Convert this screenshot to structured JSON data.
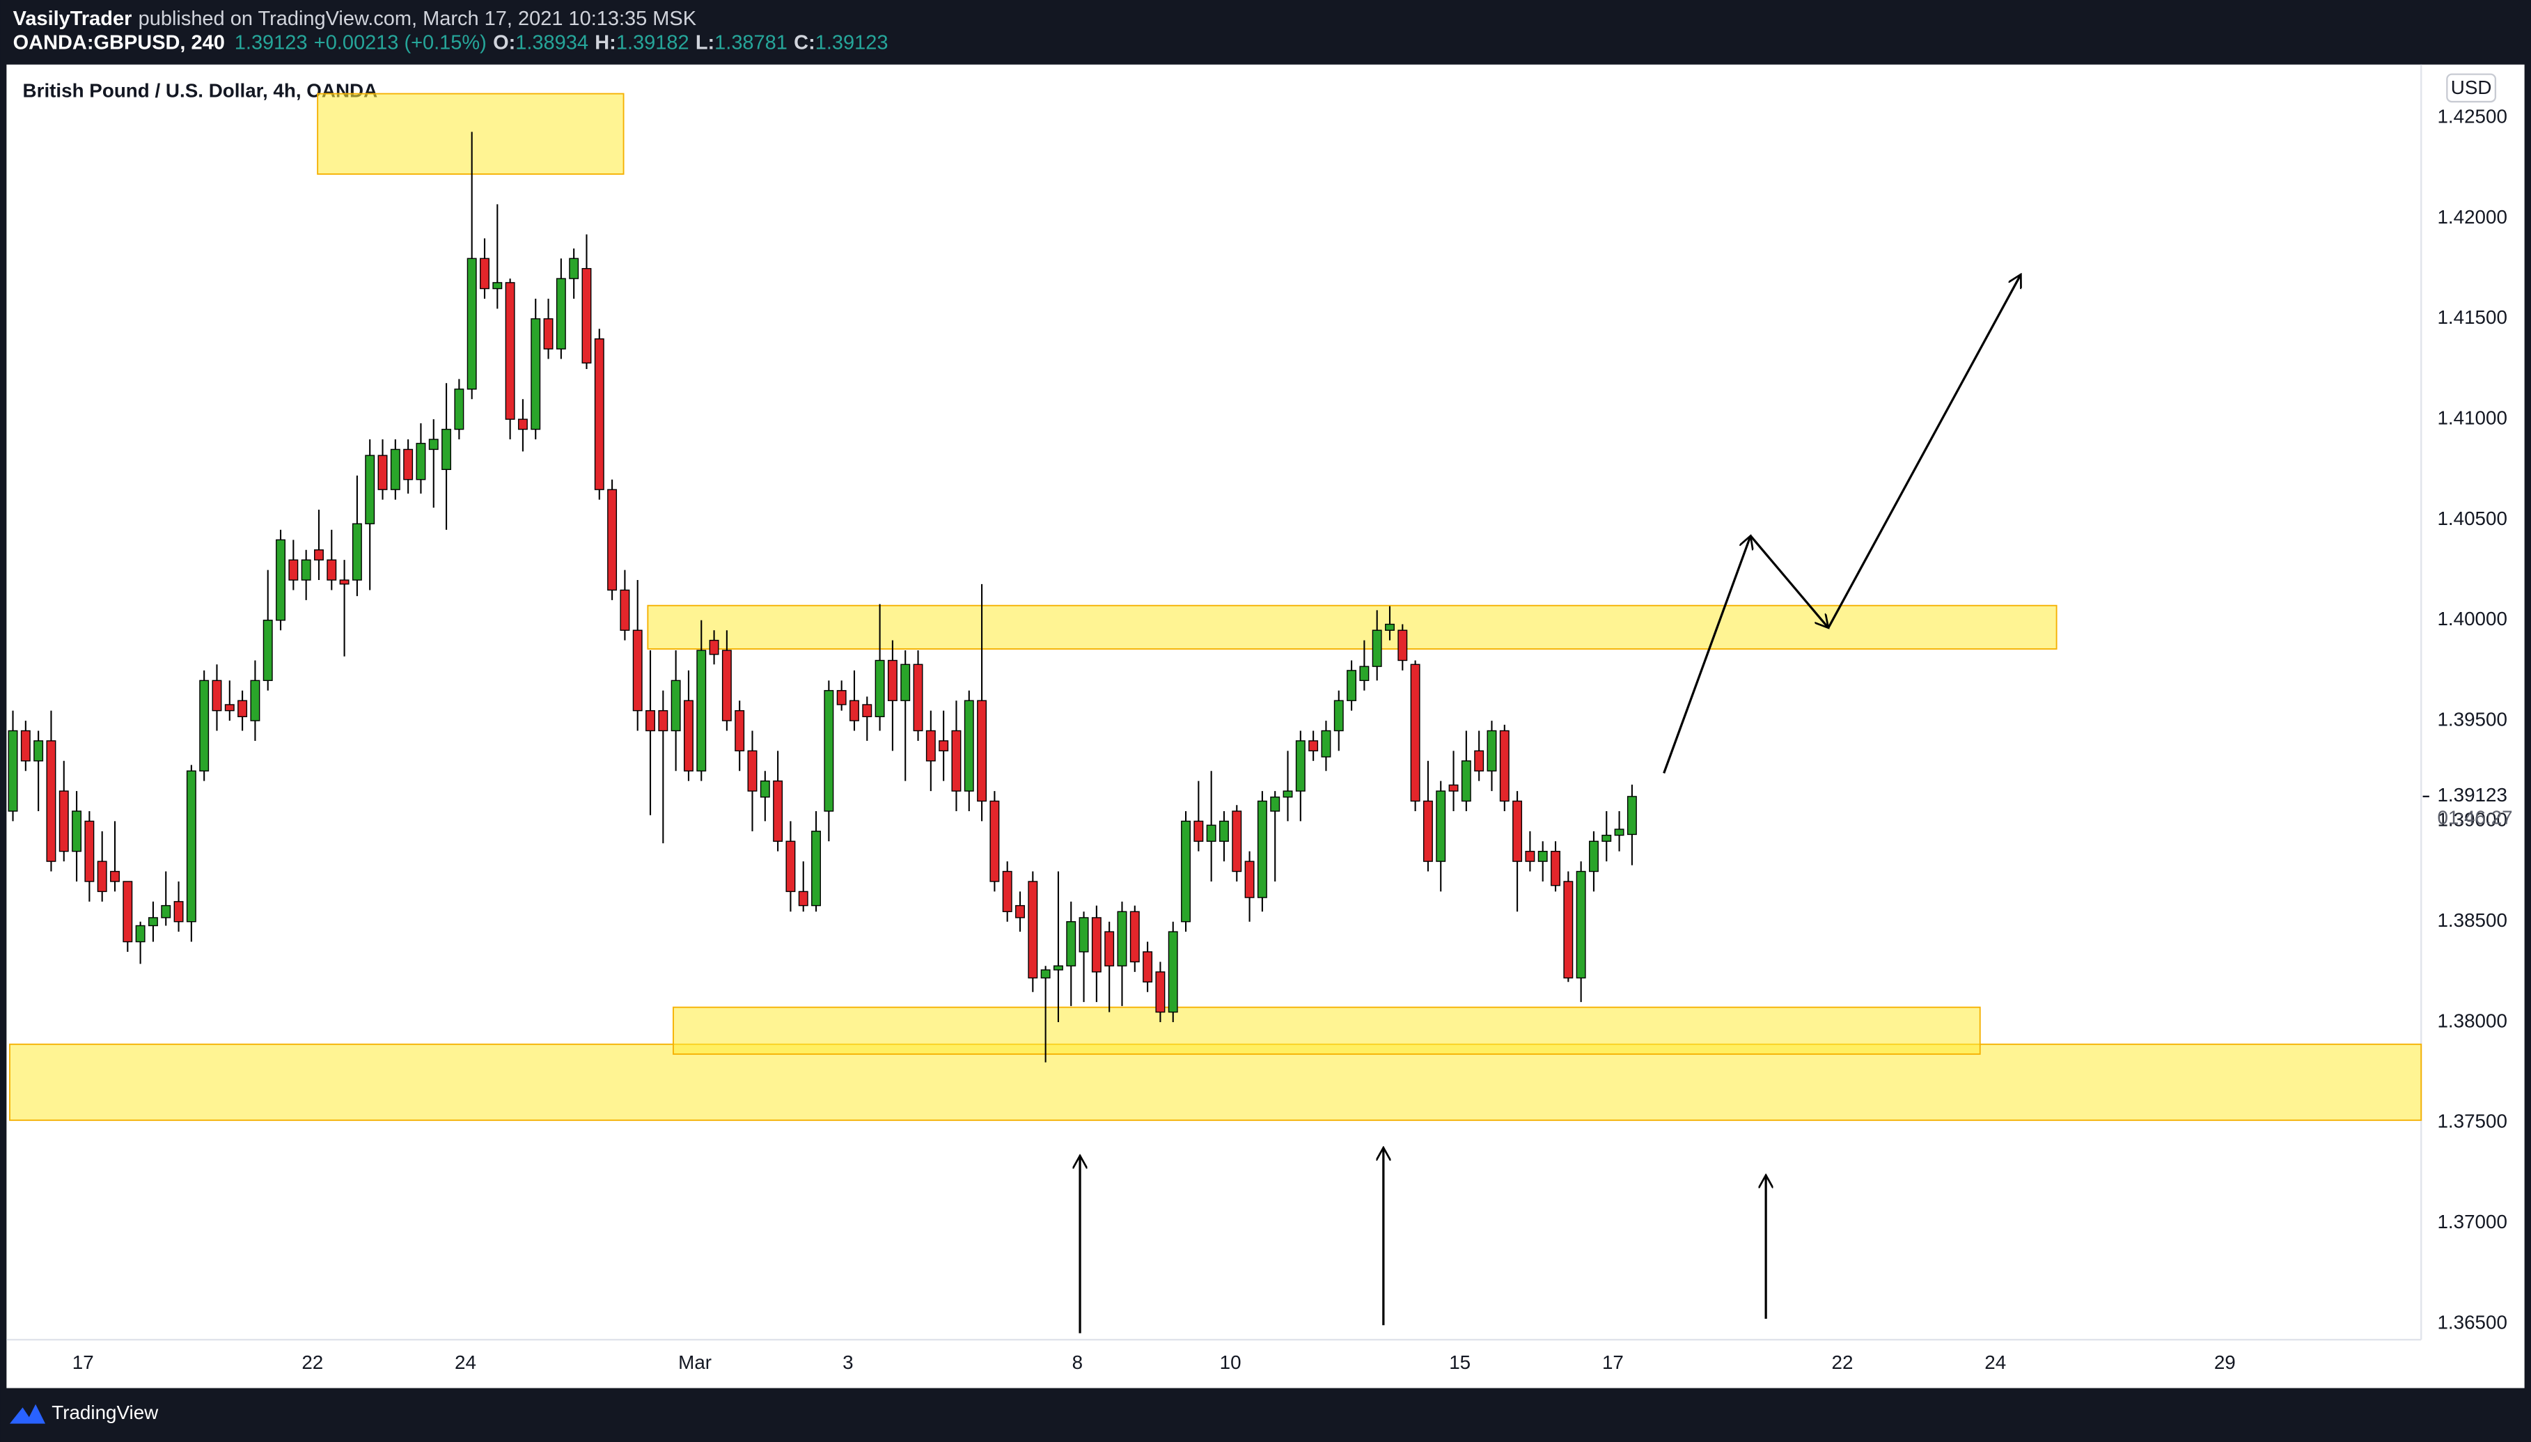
{
  "header": {
    "author": "VasilyTrader",
    "published": "published on TradingView.com, March 17, 2021 10:13:35 MSK",
    "symbol": "OANDA:GBPUSD, 240",
    "last": "1.39123",
    "change": "+0.00213 (+0.15%)",
    "ohlc": [
      {
        "key": "O:",
        "val": "1.38934"
      },
      {
        "key": "H:",
        "val": "1.39182"
      },
      {
        "key": "L:",
        "val": "1.38781"
      },
      {
        "key": "C:",
        "val": "1.39123"
      }
    ]
  },
  "footer": {
    "brand": "TradingView"
  },
  "chart_data": {
    "type": "candlestick",
    "title": "British Pound / U.S. Dollar, 4h, OANDA",
    "currency": "USD",
    "last_price_label": "1.39123",
    "countdown": "01:46:27",
    "up_color": "#2aa52a",
    "down_color": "#e3262b",
    "zone_color": "#ffeb3b",
    "xlim": [
      0,
      189.4
    ],
    "ylim": [
      1.3642,
      1.42765
    ],
    "xticks": [
      {
        "value": 6,
        "label": "17"
      },
      {
        "value": 24,
        "label": "22"
      },
      {
        "value": 36,
        "label": "24"
      },
      {
        "value": 54,
        "label": "Mar"
      },
      {
        "value": 66,
        "label": "3"
      },
      {
        "value": 84,
        "label": "8"
      },
      {
        "value": 96,
        "label": "10"
      },
      {
        "value": 114,
        "label": "15"
      },
      {
        "value": 126,
        "label": "17"
      },
      {
        "value": 144,
        "label": "22"
      },
      {
        "value": 156,
        "label": "24"
      },
      {
        "value": 174,
        "label": "29"
      }
    ],
    "yticks": [
      {
        "value": 1.365,
        "label": "1.36500"
      },
      {
        "value": 1.37,
        "label": "1.37000"
      },
      {
        "value": 1.375,
        "label": "1.37500"
      },
      {
        "value": 1.38,
        "label": "1.38000"
      },
      {
        "value": 1.385,
        "label": "1.38500"
      },
      {
        "value": 1.39,
        "label": "1.39000"
      },
      {
        "value": 1.395,
        "label": "1.39500"
      },
      {
        "value": 1.4,
        "label": "1.40000"
      },
      {
        "value": 1.405,
        "label": "1.40500"
      },
      {
        "value": 1.41,
        "label": "1.41000"
      },
      {
        "value": 1.415,
        "label": "1.41500"
      },
      {
        "value": 1.42,
        "label": "1.42000"
      },
      {
        "value": 1.425,
        "label": "1.42500"
      }
    ],
    "open": [
      1.3905,
      1.3945,
      1.393,
      1.394,
      1.3915,
      1.3885,
      1.39,
      1.388,
      1.3875,
      1.387,
      1.384,
      1.3848,
      1.3852,
      1.386,
      1.385,
      1.3925,
      1.397,
      1.3958,
      1.396,
      1.395,
      1.397,
      1.4,
      1.403,
      1.402,
      1.4035,
      1.403,
      1.402,
      1.402,
      1.4048,
      1.4082,
      1.4065,
      1.4085,
      1.407,
      1.4085,
      1.4075,
      1.4095,
      1.4115,
      1.418,
      1.4165,
      1.4168,
      1.41,
      1.4095,
      1.415,
      1.4135,
      1.417,
      1.4175,
      1.414,
      1.4065,
      1.4015,
      1.3995,
      1.3955,
      1.3955,
      1.3945,
      1.396,
      1.3925,
      1.399,
      1.3985,
      1.3955,
      1.3935,
      1.3912,
      1.392,
      1.389,
      1.3865,
      1.3858,
      1.3905,
      1.3965,
      1.396,
      1.3958,
      1.3952,
      1.398,
      1.396,
      1.3978,
      1.3945,
      1.394,
      1.3945,
      1.3915,
      1.396,
      1.391,
      1.3875,
      1.3858,
      1.387,
      1.3822,
      1.3826,
      1.3828,
      1.3835,
      1.3852,
      1.3845,
      1.3828,
      1.3855,
      1.3835,
      1.3825,
      1.3805,
      1.385,
      1.39,
      1.389,
      1.389,
      1.3905,
      1.388,
      1.3862,
      1.3905,
      1.3912,
      1.3915,
      1.394,
      1.3932,
      1.3945,
      1.396,
      1.397,
      1.3977,
      1.3995,
      1.3995,
      1.3978,
      1.391,
      1.388,
      1.3918,
      1.391,
      1.3935,
      1.3925,
      1.3945,
      1.391,
      1.3885,
      1.388,
      1.3885,
      1.387,
      1.3822,
      1.3875,
      1.389,
      1.3893,
      1.38934
    ],
    "high": [
      1.3955,
      1.395,
      1.3945,
      1.3955,
      1.393,
      1.3915,
      1.3905,
      1.3895,
      1.39,
      1.387,
      1.385,
      1.386,
      1.3875,
      1.387,
      1.3928,
      1.3975,
      1.3978,
      1.397,
      1.3965,
      1.398,
      1.4025,
      1.4045,
      1.404,
      1.4035,
      1.4055,
      1.4045,
      1.403,
      1.4072,
      1.409,
      1.409,
      1.409,
      1.409,
      1.4098,
      1.41,
      1.4118,
      1.412,
      1.4243,
      1.419,
      1.4207,
      1.417,
      1.411,
      1.416,
      1.416,
      1.418,
      1.4185,
      1.4192,
      1.4145,
      1.407,
      1.4025,
      1.402,
      1.3985,
      1.3965,
      1.3985,
      1.3975,
      1.4,
      1.3995,
      1.3995,
      1.396,
      1.3945,
      1.3925,
      1.3935,
      1.39,
      1.388,
      1.3905,
      1.397,
      1.397,
      1.3975,
      1.3962,
      1.4008,
      1.399,
      1.3985,
      1.3985,
      1.3955,
      1.3955,
      1.396,
      1.3965,
      1.4018,
      1.3915,
      1.388,
      1.3865,
      1.3875,
      1.3828,
      1.3875,
      1.386,
      1.3855,
      1.3858,
      1.385,
      1.386,
      1.3858,
      1.384,
      1.383,
      1.385,
      1.3905,
      1.392,
      1.3925,
      1.3905,
      1.3908,
      1.3885,
      1.3915,
      1.3915,
      1.3935,
      1.3945,
      1.3945,
      1.395,
      1.3965,
      1.398,
      1.399,
      1.4005,
      1.4007,
      1.3998,
      1.398,
      1.393,
      1.392,
      1.3935,
      1.3945,
      1.3945,
      1.395,
      1.3948,
      1.3915,
      1.3895,
      1.389,
      1.389,
      1.3875,
      1.388,
      1.3895,
      1.3905,
      1.3905,
      1.39182
    ],
    "low": [
      1.39,
      1.3925,
      1.3905,
      1.3875,
      1.388,
      1.387,
      1.386,
      1.386,
      1.3865,
      1.3835,
      1.3829,
      1.384,
      1.3848,
      1.3845,
      1.384,
      1.392,
      1.3945,
      1.395,
      1.3945,
      1.394,
      1.3965,
      1.3995,
      1.4015,
      1.401,
      1.402,
      1.4015,
      1.3982,
      1.4012,
      1.4015,
      1.406,
      1.406,
      1.4063,
      1.4063,
      1.4056,
      1.4045,
      1.409,
      1.411,
      1.416,
      1.4155,
      1.409,
      1.4084,
      1.409,
      1.413,
      1.413,
      1.416,
      1.4125,
      1.406,
      1.401,
      1.399,
      1.3945,
      1.3903,
      1.3889,
      1.3925,
      1.392,
      1.392,
      1.3978,
      1.3945,
      1.3925,
      1.3895,
      1.39,
      1.3885,
      1.3855,
      1.3855,
      1.3855,
      1.389,
      1.3955,
      1.3945,
      1.394,
      1.3945,
      1.3935,
      1.392,
      1.394,
      1.3915,
      1.392,
      1.3905,
      1.3905,
      1.39,
      1.3865,
      1.385,
      1.3845,
      1.3815,
      1.378,
      1.38,
      1.3808,
      1.381,
      1.381,
      1.3805,
      1.3808,
      1.3825,
      1.3815,
      1.38,
      1.38,
      1.3845,
      1.3885,
      1.387,
      1.388,
      1.387,
      1.385,
      1.3855,
      1.387,
      1.39,
      1.39,
      1.393,
      1.3925,
      1.3935,
      1.3955,
      1.3965,
      1.397,
      1.399,
      1.3975,
      1.3905,
      1.3875,
      1.3865,
      1.3905,
      1.3905,
      1.392,
      1.3915,
      1.3905,
      1.3855,
      1.3875,
      1.387,
      1.3865,
      1.382,
      1.381,
      1.3865,
      1.388,
      1.3885,
      1.38781
    ],
    "close": [
      1.3945,
      1.393,
      1.394,
      1.388,
      1.3885,
      1.3905,
      1.387,
      1.3865,
      1.387,
      1.384,
      1.3848,
      1.3852,
      1.3858,
      1.385,
      1.3925,
      1.397,
      1.3955,
      1.3955,
      1.3952,
      1.397,
      1.4,
      1.404,
      1.402,
      1.403,
      1.403,
      1.402,
      1.4018,
      1.4048,
      1.4082,
      1.4065,
      1.4085,
      1.407,
      1.4088,
      1.409,
      1.4095,
      1.4115,
      1.418,
      1.4165,
      1.4168,
      1.41,
      1.4095,
      1.415,
      1.4135,
      1.417,
      1.418,
      1.4128,
      1.4065,
      1.4015,
      1.3995,
      1.3955,
      1.3945,
      1.3945,
      1.397,
      1.3925,
      1.3985,
      1.3983,
      1.395,
      1.3935,
      1.3915,
      1.392,
      1.389,
      1.3865,
      1.3858,
      1.3895,
      1.3965,
      1.3958,
      1.395,
      1.3952,
      1.398,
      1.396,
      1.3978,
      1.3945,
      1.393,
      1.3935,
      1.3915,
      1.396,
      1.391,
      1.387,
      1.3855,
      1.3852,
      1.3822,
      1.3826,
      1.3828,
      1.385,
      1.3852,
      1.3825,
      1.3828,
      1.3855,
      1.383,
      1.382,
      1.3805,
      1.3845,
      1.39,
      1.389,
      1.3898,
      1.39,
      1.3875,
      1.3862,
      1.391,
      1.3912,
      1.3915,
      1.394,
      1.3935,
      1.3945,
      1.396,
      1.3975,
      1.3977,
      1.3995,
      1.3998,
      1.398,
      1.391,
      1.388,
      1.3915,
      1.3915,
      1.393,
      1.3925,
      1.3945,
      1.391,
      1.388,
      1.388,
      1.3885,
      1.3868,
      1.3822,
      1.3875,
      1.389,
      1.3893,
      1.3896,
      1.39123
    ],
    "zones": [
      {
        "x": [
          24.4,
          48.4
        ],
        "y": [
          1.4222,
          1.4262
        ]
      },
      {
        "x": [
          50.3,
          160.8
        ],
        "y": [
          1.39857,
          1.40073
        ]
      },
      {
        "x": [
          0.25,
          189.4
        ],
        "y": [
          1.37512,
          1.3789
        ]
      },
      {
        "x": [
          52.3,
          154.8
        ],
        "y": [
          1.37841,
          1.38074
        ]
      }
    ],
    "arrows": [
      {
        "from": [
          130,
          1.39239
        ],
        "to": [
          136.8,
          1.4042
        ]
      },
      {
        "from": [
          136.8,
          1.4042
        ],
        "to": [
          142.9,
          1.39962
        ]
      },
      {
        "from": [
          142.9,
          1.39962
        ],
        "to": [
          158,
          1.41721
        ]
      },
      {
        "from": [
          84.2,
          1.36452
        ],
        "to": [
          84.2,
          1.37336
        ]
      },
      {
        "from": [
          108,
          1.36492
        ],
        "to": [
          108,
          1.37376
        ]
      },
      {
        "from": [
          138,
          1.36524
        ],
        "to": [
          138,
          1.37239
        ]
      }
    ]
  }
}
